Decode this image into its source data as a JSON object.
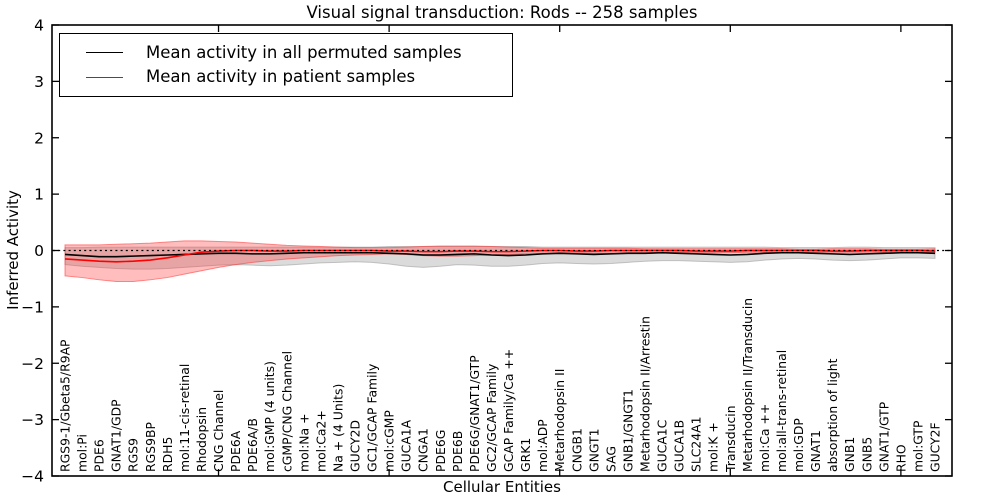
{
  "window": {
    "title": "Visual signal transduction: Rods -- 258 samples"
  },
  "colors": {
    "permuted_line": "#000000",
    "patient_line": "#ff0000",
    "permuted_band": "#999999",
    "patient_band": "#ff3333",
    "axis": "#000000",
    "background": "#ffffff"
  },
  "legend": {
    "position": "upper left",
    "items": [
      {
        "label": "Mean activity in all permuted samples",
        "color": "#000000"
      },
      {
        "label": "Mean activity in patient samples",
        "color": "#ff0000"
      }
    ]
  },
  "chart_data": {
    "type": "line",
    "title": "Visual signal transduction: Rods -- 258 samples",
    "xlabel": "Cellular Entities",
    "ylabel": "Inferred Activity",
    "ylim": [
      -4,
      4
    ],
    "yticks": [
      -4,
      -3,
      -2,
      -1,
      0,
      1,
      2,
      3,
      4
    ],
    "x_major_tick_indices": [
      9,
      19,
      29,
      39,
      49
    ],
    "zero_reference_line": true,
    "grid": false,
    "legend_position": "upper left",
    "categories": [
      "RGS9-1/Gbeta5/R9AP",
      "mol:Pi",
      "PDE6",
      "GNAT1/GDP",
      "RGS9",
      "RGS9BP",
      "RDH5",
      "mol:11-cis-retinal",
      "Rhodopsin",
      "CNG Channel",
      "PDE6A",
      "PDE6A/B",
      "mol:GMP (4 units)",
      "cGMP/CNG Channel",
      "mol:Na +",
      "mol:Ca2+",
      "Na + (4 Units)",
      "GUCY2D",
      "GC1/GCAP Family",
      "mol:cGMP",
      "GUCA1A",
      "CNGA1",
      "PDE6G",
      "PDE6B",
      "PDE6G/GNAT1/GTP",
      "GC2/GCAP Family",
      "GCAP Family/Ca ++",
      "GRK1",
      "mol:ADP",
      "Metarhodopsin II",
      "CNGB1",
      "GNGT1",
      "SAG",
      "GNB1/GNGT1",
      "Metarhodopsin II/Arrestin",
      "GUCA1C",
      "GUCA1B",
      "SLC24A1",
      "mol:K +",
      "Transducin",
      "Metarhodopsin II/Transducin",
      "mol:Ca ++",
      "mol:all-trans-retinal",
      "mol:GDP",
      "GNAT1",
      "absorption of light",
      "GNB1",
      "GNB5",
      "GNAT1/GTP",
      "RHO",
      "mol:GTP",
      "GUCY2F"
    ],
    "series": [
      {
        "name": "Mean activity in all permuted samples",
        "color": "#000000",
        "values": [
          -0.07,
          -0.09,
          -0.11,
          -0.11,
          -0.1,
          -0.09,
          -0.08,
          -0.07,
          -0.06,
          -0.05,
          -0.05,
          -0.06,
          -0.06,
          -0.05,
          -0.04,
          -0.04,
          -0.04,
          -0.04,
          -0.04,
          -0.05,
          -0.06,
          -0.08,
          -0.08,
          -0.07,
          -0.06,
          -0.08,
          -0.09,
          -0.08,
          -0.06,
          -0.05,
          -0.06,
          -0.07,
          -0.06,
          -0.05,
          -0.05,
          -0.04,
          -0.05,
          -0.06,
          -0.07,
          -0.08,
          -0.07,
          -0.05,
          -0.04,
          -0.04,
          -0.05,
          -0.06,
          -0.07,
          -0.06,
          -0.05,
          -0.04,
          -0.04,
          -0.05
        ]
      },
      {
        "name": "Mean activity in patient samples",
        "color": "#ff0000",
        "values": [
          -0.15,
          -0.17,
          -0.19,
          -0.2,
          -0.19,
          -0.17,
          -0.13,
          -0.08,
          -0.03,
          -0.01,
          0.0,
          0.0,
          -0.01,
          -0.01,
          0.0,
          0.0,
          0.0,
          0.0,
          0.0,
          -0.01,
          -0.01,
          -0.02,
          -0.02,
          -0.01,
          -0.01,
          -0.02,
          -0.02,
          -0.01,
          0.0,
          0.0,
          -0.01,
          -0.01,
          0.0,
          0.0,
          0.0,
          0.0,
          0.0,
          -0.01,
          -0.01,
          -0.01,
          0.0,
          0.0,
          0.0,
          0.0,
          0.0,
          -0.01,
          -0.01,
          0.0,
          0.0,
          0.0,
          0.0,
          -0.01
        ]
      }
    ],
    "bands": [
      {
        "name": "permuted samples activity range",
        "color": "#999999",
        "fill_opacity": 0.35,
        "upper": [
          0.05,
          0.05,
          0.06,
          0.06,
          0.06,
          0.06,
          0.06,
          0.06,
          0.06,
          0.06,
          0.06,
          0.06,
          0.06,
          0.06,
          0.06,
          0.06,
          0.06,
          0.06,
          0.06,
          0.07,
          0.07,
          0.07,
          0.07,
          0.07,
          0.07,
          0.07,
          0.07,
          0.07,
          0.06,
          0.06,
          0.06,
          0.06,
          0.06,
          0.06,
          0.06,
          0.06,
          0.06,
          0.06,
          0.06,
          0.06,
          0.06,
          0.06,
          0.05,
          0.05,
          0.05,
          0.05,
          0.06,
          0.06,
          0.05,
          0.05,
          0.05,
          0.05
        ],
        "lower": [
          -0.25,
          -0.28,
          -0.3,
          -0.32,
          -0.33,
          -0.33,
          -0.32,
          -0.3,
          -0.28,
          -0.26,
          -0.25,
          -0.26,
          -0.27,
          -0.26,
          -0.24,
          -0.22,
          -0.21,
          -0.2,
          -0.21,
          -0.24,
          -0.28,
          -0.3,
          -0.28,
          -0.25,
          -0.26,
          -0.28,
          -0.28,
          -0.26,
          -0.23,
          -0.22,
          -0.23,
          -0.24,
          -0.23,
          -0.21,
          -0.19,
          -0.18,
          -0.18,
          -0.19,
          -0.2,
          -0.21,
          -0.2,
          -0.17,
          -0.15,
          -0.14,
          -0.15,
          -0.17,
          -0.18,
          -0.17,
          -0.15,
          -0.13,
          -0.13,
          -0.14
        ]
      },
      {
        "name": "patient samples activity range",
        "color": "#ff3333",
        "fill_opacity": 0.32,
        "upper": [
          0.1,
          0.1,
          0.1,
          0.11,
          0.12,
          0.13,
          0.15,
          0.17,
          0.17,
          0.16,
          0.15,
          0.13,
          0.11,
          0.09,
          0.08,
          0.07,
          0.06,
          0.05,
          0.05,
          0.05,
          0.06,
          0.07,
          0.08,
          0.08,
          0.08,
          0.07,
          0.06,
          0.05,
          0.04,
          0.04,
          0.04,
          0.04,
          0.04,
          0.04,
          0.03,
          0.03,
          0.03,
          0.03,
          0.03,
          0.03,
          0.03,
          0.03,
          0.03,
          0.02,
          0.02,
          0.03,
          0.03,
          0.03,
          0.02,
          0.02,
          0.02,
          0.03
        ],
        "lower": [
          -0.45,
          -0.48,
          -0.52,
          -0.55,
          -0.55,
          -0.52,
          -0.48,
          -0.42,
          -0.36,
          -0.3,
          -0.25,
          -0.21,
          -0.18,
          -0.15,
          -0.13,
          -0.11,
          -0.09,
          -0.08,
          -0.07,
          -0.06,
          -0.07,
          -0.09,
          -0.1,
          -0.1,
          -0.09,
          -0.08,
          -0.07,
          -0.06,
          -0.05,
          -0.04,
          -0.04,
          -0.05,
          -0.05,
          -0.04,
          -0.04,
          -0.03,
          -0.03,
          -0.04,
          -0.04,
          -0.04,
          -0.03,
          -0.03,
          -0.03,
          -0.03,
          -0.03,
          -0.03,
          -0.03,
          -0.03,
          -0.03,
          -0.02,
          -0.03,
          -0.04
        ]
      }
    ]
  }
}
